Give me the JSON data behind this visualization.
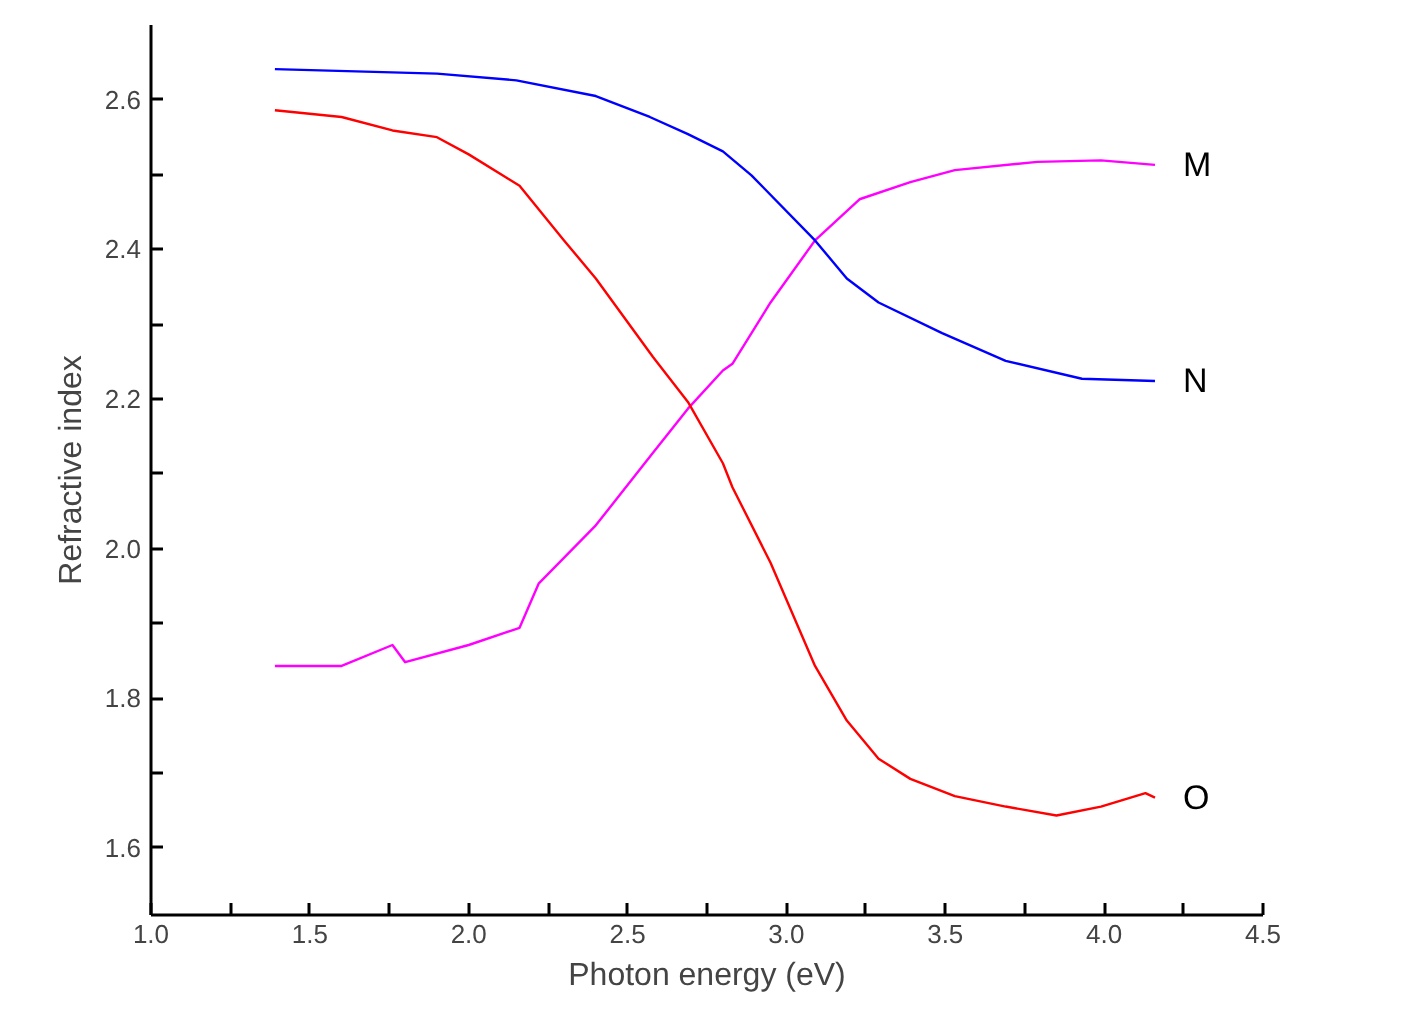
{
  "chart_data": {
    "type": "line",
    "xlabel": "Photon energy (eV)",
    "ylabel": "Refractive index",
    "xlim": [
      1.0,
      4.5
    ],
    "ylim": [
      1.51,
      2.7
    ],
    "xticks": [
      {
        "value": 1.0,
        "label": "1.0"
      },
      {
        "value": 1.25,
        "label": null
      },
      {
        "value": 1.5,
        "label": "1.5"
      },
      {
        "value": 1.75,
        "label": null
      },
      {
        "value": 2.0,
        "label": "2.0"
      },
      {
        "value": 2.25,
        "label": null
      },
      {
        "value": 2.5,
        "label": "2.5"
      },
      {
        "value": 2.75,
        "label": null
      },
      {
        "value": 3.0,
        "label": "3.0"
      },
      {
        "value": 3.25,
        "label": null
      },
      {
        "value": 3.5,
        "label": "3.5"
      },
      {
        "value": 3.75,
        "label": null
      },
      {
        "value": 4.0,
        "label": "4.0"
      },
      {
        "value": 4.25,
        "label": null
      },
      {
        "value": 4.5,
        "label": "4.5"
      }
    ],
    "yticks": [
      {
        "value": 1.6,
        "label": "1.6"
      },
      {
        "value": 1.7,
        "label": null
      },
      {
        "value": 1.8,
        "label": "1.8"
      },
      {
        "value": 1.9,
        "label": null
      },
      {
        "value": 2.0,
        "label": "2.0"
      },
      {
        "value": 2.1,
        "label": null
      },
      {
        "value": 2.2,
        "label": "2.2"
      },
      {
        "value": 2.3,
        "label": null
      },
      {
        "value": 2.4,
        "label": "2.4"
      },
      {
        "value": 2.5,
        "label": null
      },
      {
        "value": 2.6,
        "label": "2.6"
      }
    ],
    "grid": false,
    "legend": false,
    "marker": "none",
    "line_style": "solid",
    "series": [
      {
        "name": "M",
        "color": "#ff00ff",
        "x": [
          1.39,
          1.6,
          1.76,
          1.8,
          2.0,
          2.16,
          2.22,
          2.4,
          2.58,
          2.69,
          2.8,
          2.83,
          2.95,
          3.09,
          3.23,
          3.39,
          3.53,
          3.79,
          3.99,
          4.16
        ],
        "values": [
          1.843,
          1.843,
          1.871,
          1.848,
          1.871,
          1.894,
          1.953,
          2.031,
          2.128,
          2.187,
          2.238,
          2.247,
          2.329,
          2.412,
          2.467,
          2.49,
          2.506,
          2.517,
          2.519,
          2.513
        ]
      },
      {
        "name": "N",
        "color": "#0000ff",
        "x": [
          1.39,
          1.9,
          2.15,
          2.4,
          2.57,
          2.69,
          2.8,
          2.89,
          3.09,
          3.19,
          3.29,
          3.49,
          3.69,
          3.93,
          4.16
        ],
        "values": [
          2.641,
          2.635,
          2.626,
          2.605,
          2.577,
          2.554,
          2.531,
          2.499,
          2.412,
          2.361,
          2.329,
          2.288,
          2.251,
          2.227,
          2.224
        ]
      },
      {
        "name": "O",
        "color": "#ff0000",
        "x": [
          1.39,
          1.6,
          1.76,
          1.9,
          2.0,
          2.16,
          2.3,
          2.4,
          2.58,
          2.69,
          2.8,
          2.83,
          2.95,
          3.09,
          3.19,
          3.29,
          3.39,
          3.53,
          3.69,
          3.85,
          3.99,
          4.13,
          4.16
        ],
        "values": [
          2.586,
          2.577,
          2.559,
          2.55,
          2.527,
          2.485,
          2.412,
          2.361,
          2.256,
          2.196,
          2.114,
          2.082,
          1.981,
          1.843,
          1.77,
          1.719,
          1.692,
          1.669,
          1.655,
          1.643,
          1.655,
          1.673,
          1.667
        ]
      }
    ]
  }
}
